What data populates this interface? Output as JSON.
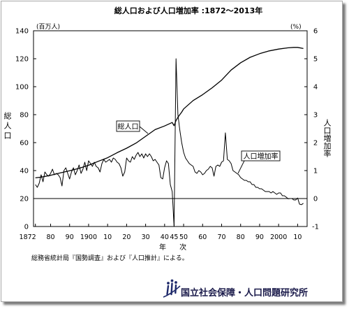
{
  "note": "総務省統計局『国勢調査』および『人口推計』による。",
  "organization": "国立社会保障・人口問題研究所",
  "logo_icon": "ipss-logo-icon",
  "chart_data": {
    "type": "line",
    "title": "総人口および人口増加率 :1872～2013年",
    "xlabel": "年 次",
    "ylabel_left": "総人口",
    "ylabel_right": "人口増加率",
    "left_unit": "(百万人)",
    "right_unit": "(%)",
    "xlim": [
      1871,
      2015
    ],
    "ylim_left": [
      0,
      140
    ],
    "ylim_right": [
      -1,
      6
    ],
    "grid": false,
    "x_ticks": {
      "values": [
        1872,
        1880,
        1890,
        1900,
        1910,
        1920,
        1930,
        1940,
        1945,
        1950,
        1960,
        1970,
        1980,
        1990,
        2000,
        2010
      ],
      "labels": [
        "1872",
        "80",
        "90",
        "1900",
        "10",
        "20",
        "30",
        "40",
        "45",
        "50",
        "60",
        "70",
        "80",
        "90",
        "2000",
        "10"
      ]
    },
    "y_ticks_left": [
      0,
      20,
      40,
      60,
      80,
      100,
      120,
      140
    ],
    "y_ticks_right": [
      -1,
      0,
      1,
      2,
      3,
      4,
      5,
      6
    ],
    "reference_line": {
      "axis": "right",
      "value": 0
    },
    "annotations": [
      {
        "text": "総人口"
      },
      {
        "text": "人口増加率"
      }
    ],
    "series": [
      {
        "name": "総人口",
        "axis": "left",
        "x": [
          1872,
          1875,
          1880,
          1885,
          1890,
          1895,
          1900,
          1905,
          1910,
          1915,
          1920,
          1925,
          1930,
          1935,
          1940,
          1944,
          1945,
          1946,
          1947,
          1948,
          1949,
          1950,
          1955,
          1960,
          1965,
          1970,
          1975,
          1980,
          1985,
          1990,
          1995,
          2000,
          2005,
          2008,
          2010,
          2013
        ],
        "values": [
          34.8,
          35.3,
          36.6,
          38.3,
          39.9,
          41.6,
          43.8,
          46.6,
          49.2,
          52.8,
          56.0,
          59.7,
          64.5,
          69.3,
          71.9,
          74.4,
          72.1,
          75.8,
          78.1,
          80.0,
          81.8,
          84.1,
          90.1,
          94.3,
          99.2,
          104.7,
          111.9,
          117.1,
          121.0,
          123.6,
          125.6,
          126.9,
          127.8,
          128.1,
          128.1,
          127.3
        ]
      },
      {
        "name": "人口増加率",
        "axis": "right",
        "x": [
          1872,
          1873,
          1874,
          1875,
          1876,
          1877,
          1878,
          1879,
          1880,
          1881,
          1882,
          1883,
          1884,
          1885,
          1886,
          1887,
          1888,
          1889,
          1890,
          1891,
          1892,
          1893,
          1894,
          1895,
          1896,
          1897,
          1898,
          1899,
          1900,
          1901,
          1902,
          1903,
          1904,
          1905,
          1906,
          1907,
          1908,
          1909,
          1910,
          1911,
          1912,
          1913,
          1914,
          1915,
          1916,
          1917,
          1918,
          1919,
          1920,
          1921,
          1922,
          1923,
          1924,
          1925,
          1926,
          1927,
          1928,
          1929,
          1930,
          1931,
          1932,
          1933,
          1934,
          1935,
          1936,
          1937,
          1938,
          1939,
          1940,
          1941,
          1942,
          1943,
          1944,
          1945,
          1946,
          1947,
          1948,
          1949,
          1950,
          1951,
          1952,
          1953,
          1954,
          1955,
          1956,
          1957,
          1958,
          1959,
          1960,
          1961,
          1962,
          1963,
          1964,
          1965,
          1966,
          1967,
          1968,
          1969,
          1970,
          1971,
          1972,
          1973,
          1974,
          1975,
          1976,
          1977,
          1978,
          1979,
          1980,
          1981,
          1982,
          1983,
          1984,
          1985,
          1986,
          1987,
          1988,
          1989,
          1990,
          1991,
          1992,
          1993,
          1994,
          1995,
          1996,
          1997,
          1998,
          1999,
          2000,
          2001,
          2002,
          2003,
          2004,
          2005,
          2006,
          2007,
          2008,
          2009,
          2010,
          2011,
          2012,
          2013
        ],
        "values": [
          0.5,
          0.4,
          0.55,
          0.85,
          0.6,
          0.95,
          0.85,
          0.8,
          0.9,
          1.05,
          0.85,
          0.9,
          0.85,
          0.75,
          0.45,
          1.0,
          1.1,
          0.9,
          0.7,
          0.95,
          1.1,
          0.85,
          1.0,
          1.2,
          0.9,
          1.05,
          1.3,
          1.0,
          1.35,
          1.25,
          1.15,
          1.3,
          1.15,
          1.1,
          0.95,
          1.25,
          1.4,
          1.3,
          1.35,
          1.4,
          1.3,
          1.45,
          1.4,
          1.3,
          1.25,
          1.1,
          0.8,
          0.95,
          1.45,
          1.35,
          1.3,
          1.5,
          1.4,
          1.55,
          1.65,
          1.5,
          1.6,
          1.45,
          1.6,
          1.5,
          1.6,
          1.5,
          1.35,
          1.4,
          1.3,
          1.2,
          0.75,
          0.7,
          1.1,
          1.35,
          1.25,
          0.5,
          0.25,
          -1.0,
          5.0,
          3.0,
          2.45,
          2.0,
          1.65,
          1.45,
          1.35,
          1.25,
          1.2,
          1.15,
          0.95,
          0.9,
          1.0,
          0.95,
          0.85,
          0.9,
          1.0,
          1.05,
          1.15,
          1.1,
          0.8,
          1.15,
          1.2,
          1.15,
          1.3,
          1.35,
          2.35,
          1.4,
          1.35,
          1.25,
          1.0,
          0.95,
          0.9,
          0.85,
          0.75,
          0.7,
          0.65,
          0.65,
          0.6,
          0.6,
          0.5,
          0.5,
          0.4,
          0.4,
          0.35,
          0.35,
          0.3,
          0.25,
          0.25,
          0.25,
          0.2,
          0.25,
          0.2,
          0.15,
          0.2,
          0.2,
          0.1,
          0.1,
          0.05,
          -0.01,
          0.0,
          0.0,
          -0.05,
          -0.05,
          0.02,
          -0.2,
          -0.22,
          -0.17
        ]
      }
    ]
  }
}
